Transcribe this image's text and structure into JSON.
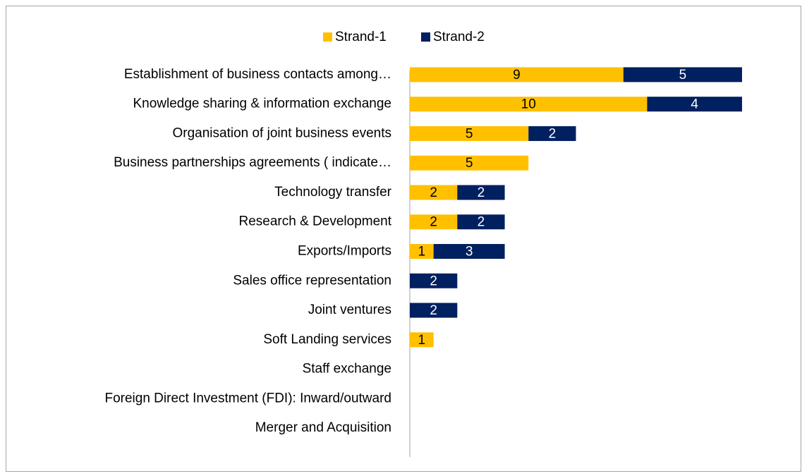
{
  "chart_data": {
    "type": "bar",
    "orientation": "horizontal",
    "stacked": true,
    "categories": [
      "Establishment of business contacts among…",
      "Knowledge sharing & information exchange",
      "Organisation of joint business events",
      "Business partnerships agreements ( indicate…",
      "Technology transfer",
      "Research & Development",
      "Exports/Imports",
      "Sales office representation",
      "Joint ventures",
      "Soft Landing services",
      "Staff exchange",
      "Foreign Direct Investment (FDI): Inward/outward",
      "Merger and Acquisition"
    ],
    "series": [
      {
        "name": "Strand-1",
        "color": "#FFC000",
        "values": [
          9,
          10,
          5,
          5,
          2,
          2,
          1,
          null,
          null,
          1,
          null,
          null,
          null
        ]
      },
      {
        "name": "Strand-2",
        "color": "#002060",
        "values": [
          5,
          4,
          2,
          null,
          2,
          2,
          3,
          2,
          2,
          null,
          null,
          null,
          null
        ]
      }
    ],
    "xlim": [
      0,
      14
    ],
    "legend": "top"
  }
}
